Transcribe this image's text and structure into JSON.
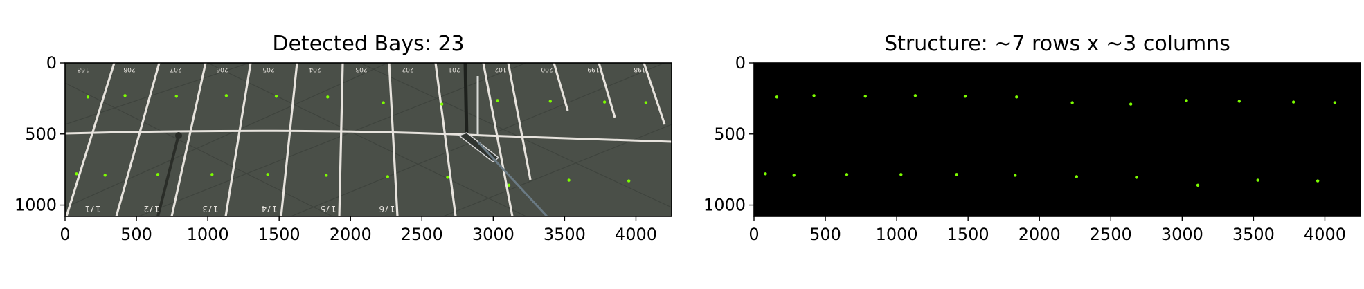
{
  "chart_data": [
    {
      "type": "image",
      "title": "Detected Bays: 23",
      "xlim": [
        0,
        4250
      ],
      "ylim": [
        1080,
        0
      ],
      "xticks": [
        0,
        500,
        1000,
        1500,
        2000,
        2500,
        3000,
        3500,
        4000
      ],
      "yticks": [
        0,
        500,
        1000
      ],
      "xticklabels": [
        "0",
        "500",
        "1000",
        "1500",
        "2000",
        "2500",
        "3000",
        "3500",
        "4000"
      ],
      "yticklabels": [
        "0",
        "500",
        "1000"
      ],
      "background_color": "#4a4f48",
      "marker_color": "#7cfc00",
      "bay_labels_top": [
        "168",
        "208",
        "207",
        "206",
        "205",
        "204",
        "203",
        "202",
        "201",
        "102",
        "200",
        "199",
        "198"
      ],
      "bay_labels_bottom": [
        "171",
        "172",
        "173",
        "174",
        "175",
        "176"
      ],
      "points": [
        {
          "x": 160,
          "y": 240
        },
        {
          "x": 420,
          "y": 230
        },
        {
          "x": 780,
          "y": 235
        },
        {
          "x": 1130,
          "y": 230
        },
        {
          "x": 1480,
          "y": 235
        },
        {
          "x": 1840,
          "y": 240
        },
        {
          "x": 2230,
          "y": 280
        },
        {
          "x": 2640,
          "y": 290
        },
        {
          "x": 3030,
          "y": 265
        },
        {
          "x": 3400,
          "y": 270
        },
        {
          "x": 3780,
          "y": 275
        },
        {
          "x": 4070,
          "y": 280
        },
        {
          "x": 80,
          "y": 780
        },
        {
          "x": 280,
          "y": 790
        },
        {
          "x": 650,
          "y": 785
        },
        {
          "x": 1030,
          "y": 785
        },
        {
          "x": 1420,
          "y": 785
        },
        {
          "x": 1830,
          "y": 790
        },
        {
          "x": 2260,
          "y": 800
        },
        {
          "x": 2680,
          "y": 805
        },
        {
          "x": 3110,
          "y": 860
        },
        {
          "x": 3530,
          "y": 825
        },
        {
          "x": 3950,
          "y": 830
        }
      ]
    },
    {
      "type": "scatter",
      "title": "Structure: ~7 rows x ~3 columns",
      "xlim": [
        0,
        4250
      ],
      "ylim": [
        1080,
        0
      ],
      "xticks": [
        0,
        500,
        1000,
        1500,
        2000,
        2500,
        3000,
        3500,
        4000
      ],
      "yticks": [
        0,
        500,
        1000
      ],
      "xticklabels": [
        "0",
        "500",
        "1000",
        "1500",
        "2000",
        "2500",
        "3000",
        "3500",
        "4000"
      ],
      "yticklabels": [
        "0",
        "500",
        "1000"
      ],
      "background_color": "#000000",
      "marker_color": "#7cfc00",
      "points": [
        {
          "x": 160,
          "y": 240
        },
        {
          "x": 420,
          "y": 230
        },
        {
          "x": 780,
          "y": 235
        },
        {
          "x": 1130,
          "y": 230
        },
        {
          "x": 1480,
          "y": 235
        },
        {
          "x": 1840,
          "y": 240
        },
        {
          "x": 2230,
          "y": 280
        },
        {
          "x": 2640,
          "y": 290
        },
        {
          "x": 3030,
          "y": 265
        },
        {
          "x": 3400,
          "y": 270
        },
        {
          "x": 3780,
          "y": 275
        },
        {
          "x": 4070,
          "y": 280
        },
        {
          "x": 80,
          "y": 780
        },
        {
          "x": 280,
          "y": 790
        },
        {
          "x": 650,
          "y": 785
        },
        {
          "x": 1030,
          "y": 785
        },
        {
          "x": 1420,
          "y": 785
        },
        {
          "x": 1830,
          "y": 790
        },
        {
          "x": 2260,
          "y": 800
        },
        {
          "x": 2680,
          "y": 805
        },
        {
          "x": 3110,
          "y": 860
        },
        {
          "x": 3530,
          "y": 825
        },
        {
          "x": 3950,
          "y": 830
        }
      ]
    }
  ]
}
